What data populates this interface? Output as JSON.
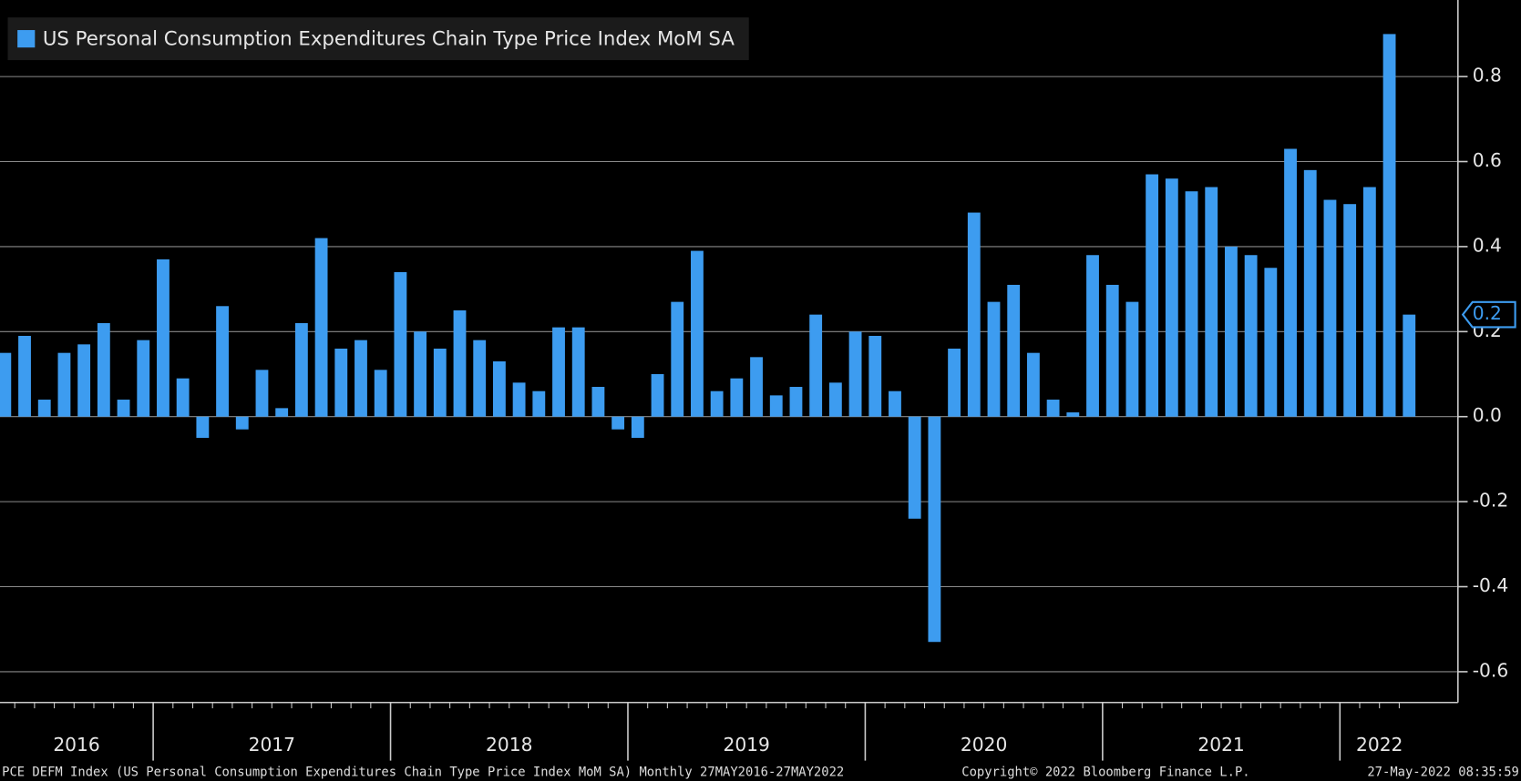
{
  "chart_data": {
    "type": "bar",
    "legend_label": "US Personal Consumption Expenditures Chain Type Price Index MoM SA",
    "color": "#3d9cf0",
    "categories": [
      "2016",
      null,
      null,
      null,
      null,
      null,
      null,
      null,
      "2017",
      null,
      null,
      null,
      null,
      null,
      null,
      null,
      null,
      null,
      null,
      null,
      "2018",
      null,
      null,
      null,
      null,
      null,
      null,
      null,
      null,
      null,
      null,
      null,
      "2019",
      null,
      null,
      null,
      null,
      null,
      null,
      null,
      null,
      null,
      null,
      null,
      "2020",
      null,
      null,
      null,
      null,
      null,
      null,
      null,
      null,
      null,
      null,
      null,
      "2021",
      null,
      null,
      null,
      null,
      null,
      null,
      null,
      null,
      null,
      null,
      null,
      "2022",
      null,
      null,
      null
    ],
    "values": [
      0.15,
      0.19,
      0.04,
      0.15,
      0.17,
      0.22,
      0.04,
      0.18,
      0.37,
      0.09,
      -0.05,
      0.26,
      -0.03,
      0.11,
      0.02,
      0.22,
      0.42,
      0.16,
      0.18,
      0.11,
      0.34,
      0.2,
      0.16,
      0.25,
      0.18,
      0.13,
      0.08,
      0.06,
      0.21,
      0.21,
      0.07,
      -0.03,
      -0.05,
      0.1,
      0.27,
      0.39,
      0.06,
      0.09,
      0.14,
      0.05,
      0.07,
      0.24,
      0.08,
      0.2,
      0.19,
      0.06,
      -0.24,
      -0.53,
      0.16,
      0.48,
      0.27,
      0.31,
      0.15,
      0.04,
      0.01,
      0.38,
      0.31,
      0.27,
      0.57,
      0.56,
      0.53,
      0.54,
      0.4,
      0.38,
      0.35,
      0.63,
      0.58,
      0.51,
      0.5,
      0.54,
      0.9,
      0.24
    ],
    "value_labels": [
      null,
      null,
      null,
      null,
      null,
      null,
      null,
      null,
      null,
      null,
      null,
      null,
      null,
      null,
      null,
      null,
      null,
      null,
      null,
      null,
      null,
      null,
      null,
      null,
      null,
      null,
      null,
      null,
      null,
      null,
      null,
      null,
      null,
      null,
      null,
      null,
      null,
      null,
      null,
      null,
      null,
      null,
      null,
      null,
      null,
      null,
      null,
      null,
      null,
      null,
      null,
      null,
      null,
      null,
      null,
      null,
      null,
      null,
      null,
      null,
      null,
      null,
      null,
      null,
      null,
      null,
      null,
      null,
      null,
      null,
      null,
      "0.2"
    ],
    "ylim": [
      -0.6724,
      0.98
    ],
    "yticks": [
      -0.6,
      -0.4,
      -0.2,
      {
        "value": 0,
        "label": "0.0"
      },
      0.2,
      0.4,
      0.6,
      0.8
    ],
    "grid": true,
    "footer_left": "PCE DEFM Index (US Personal Consumption Expenditures Chain Type Price Index MoM SA)  Monthly 27MAY2016-27MAY2022",
    "footer_center": "Copyright© 2022 Bloomberg Finance L.P.",
    "footer_right": "27-May-2022 08:35:59"
  }
}
